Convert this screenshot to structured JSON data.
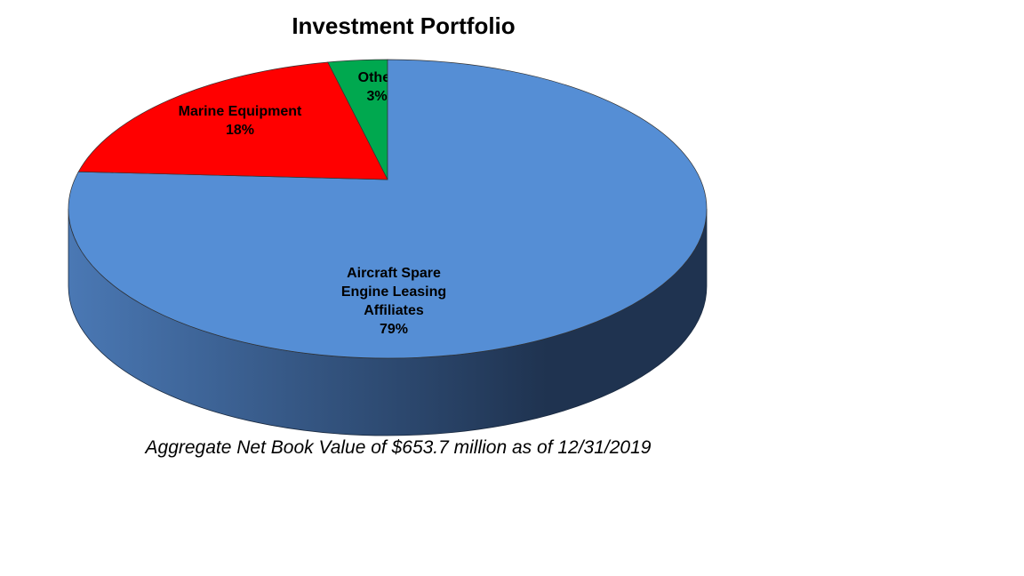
{
  "chart_data": {
    "type": "pie",
    "style": "3d",
    "title": "Investment Portfolio",
    "caption": "Aggregate Net Book Value of $653.7 million as of 12/31/2019",
    "slices": [
      {
        "label_lines": [
          "Other"
        ],
        "percent_label": "3%",
        "value": 3,
        "color": "#00a84f"
      },
      {
        "label_lines": [
          "Aircraft Spare",
          "Engine Leasing",
          "Affiliates"
        ],
        "percent_label": "79%",
        "value": 79,
        "color": "#558ed5"
      },
      {
        "label_lines": [
          "Marine Equipment"
        ],
        "percent_label": "18%",
        "value": 18,
        "color": "#ff0000"
      }
    ],
    "side_colors": [
      "#4a78b4",
      "#1f3350"
    ]
  }
}
